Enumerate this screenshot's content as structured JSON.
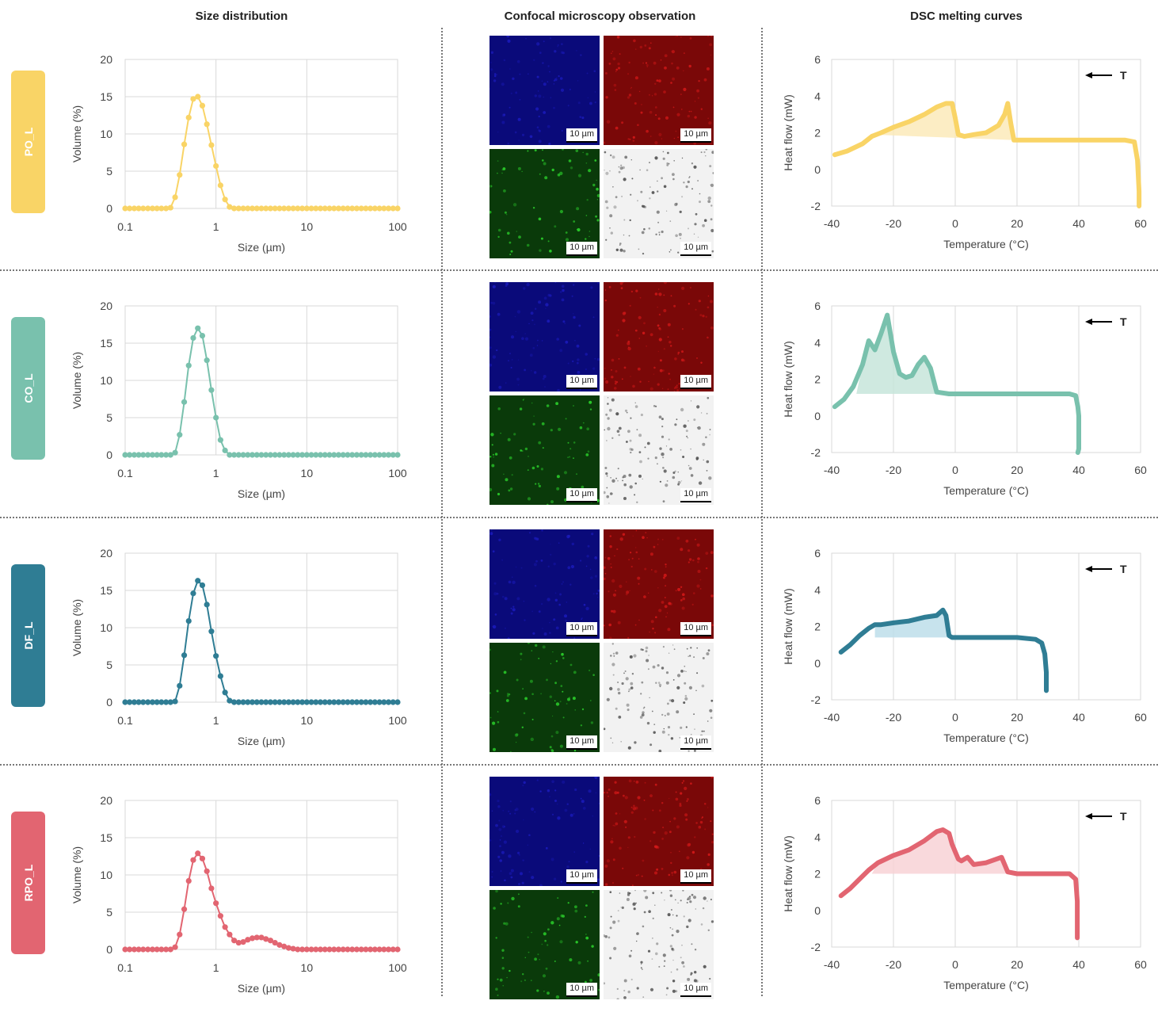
{
  "headers": {
    "size": "Size distribution",
    "confocal": "Confocal microscopy observation",
    "dsc": "DSC melting curves"
  },
  "scale_bar": "10 µm",
  "size_axis": {
    "xlabel": "Size (µm)",
    "ylabel": "Volume (%)",
    "xticks": [
      "0.1",
      "1",
      "10",
      "100"
    ],
    "yticks": [
      "0",
      "5",
      "10",
      "15",
      "20"
    ]
  },
  "dsc_axis": {
    "xlabel": "Temperature (°C)",
    "ylabel": "Heat flow (mW)",
    "xticks": [
      "-40",
      "-20",
      "0",
      "20",
      "40",
      "60"
    ],
    "yticks": [
      "-2",
      "0",
      "2",
      "4",
      "6"
    ],
    "arrow_label": "T"
  },
  "micro_colors": {
    "blue": "#0a0a7a",
    "red": "#7a0808",
    "green": "#0a3a0a",
    "gray": "#f2f2f2"
  },
  "samples": [
    {
      "name": "PO_L",
      "color": "#f9d466",
      "fill": "#fbe9b5"
    },
    {
      "name": "CO_L",
      "color": "#79c1ad",
      "fill": "#c3e3d8"
    },
    {
      "name": "DF_L",
      "color": "#2f7d94",
      "fill": "#b9dce8"
    },
    {
      "name": "RPO_L",
      "color": "#e26571",
      "fill": "#f7cfd3"
    }
  ],
  "chart_data": [
    {
      "type": "line",
      "sample": "PO_L",
      "xscale": "log",
      "xlim": [
        0.1,
        100
      ],
      "ylim": [
        0,
        20
      ],
      "xlabel": "Size (µm)",
      "ylabel": "Volume (%)",
      "series": [
        {
          "x": [
            0.1,
            0.112,
            0.126,
            0.141,
            0.158,
            0.178,
            0.2,
            0.224,
            0.251,
            0.282,
            0.316,
            0.355,
            0.398,
            0.447,
            0.501,
            0.562,
            0.631,
            0.708,
            0.794,
            0.891,
            1.0,
            1.122,
            1.259,
            1.413,
            1.585,
            1.778,
            1.995,
            2.239,
            2.512,
            2.818,
            3.162,
            3.548,
            3.981,
            4.467,
            5.012,
            5.623,
            6.31,
            7.079,
            7.943,
            8.913,
            10.0,
            11.22,
            12.59,
            14.13,
            15.85,
            17.78,
            19.95,
            22.39,
            25.12,
            28.18,
            31.62,
            35.48,
            39.81,
            44.67,
            50.12,
            56.23,
            63.1,
            70.79,
            79.43,
            89.13,
            100.0
          ],
          "y": [
            0,
            0,
            0,
            0,
            0,
            0,
            0,
            0,
            0,
            0,
            0.1,
            1.5,
            4.5,
            8.6,
            12.2,
            14.7,
            15.0,
            13.8,
            11.3,
            8.5,
            5.7,
            3.1,
            1.2,
            0.2,
            0,
            0,
            0,
            0,
            0,
            0,
            0,
            0,
            0,
            0,
            0,
            0,
            0,
            0,
            0,
            0,
            0,
            0,
            0,
            0,
            0,
            0,
            0,
            0,
            0,
            0,
            0,
            0,
            0,
            0,
            0,
            0,
            0,
            0,
            0,
            0,
            0
          ]
        }
      ]
    },
    {
      "type": "area",
      "sample": "PO_L",
      "xlim": [
        -40,
        60
      ],
      "ylim": [
        -2,
        6
      ],
      "xlabel": "Temperature (°C)",
      "ylabel": "Heat flow (mW)",
      "series": [
        {
          "x": [
            -39,
            -35,
            -30,
            -27,
            -24,
            -20,
            -15,
            -10,
            -6,
            -3,
            -1,
            0,
            1,
            3,
            6,
            10,
            14,
            16,
            17,
            18,
            19,
            25,
            35,
            45,
            55,
            58,
            59,
            59.5,
            59.5
          ],
          "y": [
            0.8,
            1.0,
            1.4,
            1.8,
            2.0,
            2.3,
            2.6,
            3.0,
            3.4,
            3.6,
            3.6,
            2.8,
            1.9,
            1.8,
            1.9,
            2.0,
            2.4,
            3.0,
            3.6,
            2.5,
            1.6,
            1.6,
            1.6,
            1.6,
            1.6,
            1.5,
            0.5,
            -1.2,
            -2.0
          ]
        }
      ],
      "baseline": {
        "x": [
          -27,
          19
        ],
        "y": [
          1.9,
          1.6
        ]
      }
    },
    {
      "type": "line",
      "sample": "CO_L",
      "xscale": "log",
      "xlim": [
        0.1,
        100
      ],
      "ylim": [
        0,
        20
      ],
      "xlabel": "Size (µm)",
      "ylabel": "Volume (%)",
      "series": [
        {
          "x": [
            0.1,
            0.112,
            0.126,
            0.141,
            0.158,
            0.178,
            0.2,
            0.224,
            0.251,
            0.282,
            0.316,
            0.355,
            0.398,
            0.447,
            0.501,
            0.562,
            0.631,
            0.708,
            0.794,
            0.891,
            1.0,
            1.122,
            1.259,
            1.413,
            1.585,
            1.778,
            1.995,
            2.239,
            2.512,
            2.818,
            3.162,
            3.548,
            3.981,
            4.467,
            5.012,
            5.623,
            6.31,
            7.079,
            7.943,
            8.913,
            10.0,
            11.22,
            12.59,
            14.13,
            15.85,
            17.78,
            19.95,
            22.39,
            25.12,
            28.18,
            31.62,
            35.48,
            39.81,
            44.67,
            50.12,
            56.23,
            63.1,
            70.79,
            79.43,
            89.13,
            100.0
          ],
          "y": [
            0,
            0,
            0,
            0,
            0,
            0,
            0,
            0,
            0,
            0,
            0,
            0.3,
            2.7,
            7.1,
            12.0,
            15.7,
            17.0,
            16.0,
            12.7,
            8.7,
            5.0,
            2.0,
            0.6,
            0,
            0,
            0,
            0,
            0,
            0,
            0,
            0,
            0,
            0,
            0,
            0,
            0,
            0,
            0,
            0,
            0,
            0,
            0,
            0,
            0,
            0,
            0,
            0,
            0,
            0,
            0,
            0,
            0,
            0,
            0,
            0,
            0,
            0,
            0,
            0,
            0,
            0
          ]
        }
      ]
    },
    {
      "type": "area",
      "sample": "CO_L",
      "xlim": [
        -40,
        60
      ],
      "ylim": [
        -2,
        6
      ],
      "xlabel": "Temperature (°C)",
      "ylabel": "Heat flow (mW)",
      "series": [
        {
          "x": [
            -39,
            -36,
            -33,
            -30,
            -28,
            -26,
            -24,
            -22,
            -20,
            -18,
            -16,
            -14,
            -12,
            -10,
            -8,
            -6,
            -2,
            10,
            20,
            30,
            37,
            39,
            39.7,
            40,
            40,
            40,
            39.7
          ],
          "y": [
            0.5,
            0.9,
            1.6,
            2.8,
            4.1,
            3.6,
            4.5,
            5.5,
            3.5,
            2.3,
            2.1,
            2.2,
            2.8,
            3.2,
            2.6,
            1.3,
            1.2,
            1.2,
            1.2,
            1.2,
            1.2,
            1.1,
            0.5,
            0.0,
            -1.0,
            -1.8,
            -2.0
          ]
        }
      ],
      "baseline": {
        "x": [
          -32,
          -6
        ],
        "y": [
          1.2,
          1.2
        ]
      }
    },
    {
      "type": "line",
      "sample": "DF_L",
      "xscale": "log",
      "xlim": [
        0.1,
        100
      ],
      "ylim": [
        0,
        20
      ],
      "xlabel": "Size (µm)",
      "ylabel": "Volume (%)",
      "series": [
        {
          "x": [
            0.1,
            0.112,
            0.126,
            0.141,
            0.158,
            0.178,
            0.2,
            0.224,
            0.251,
            0.282,
            0.316,
            0.355,
            0.398,
            0.447,
            0.501,
            0.562,
            0.631,
            0.708,
            0.794,
            0.891,
            1.0,
            1.122,
            1.259,
            1.413,
            1.585,
            1.778,
            1.995,
            2.239,
            2.512,
            2.818,
            3.162,
            3.548,
            3.981,
            4.467,
            5.012,
            5.623,
            6.31,
            7.079,
            7.943,
            8.913,
            10.0,
            11.22,
            12.59,
            14.13,
            15.85,
            17.78,
            19.95,
            22.39,
            25.12,
            28.18,
            31.62,
            35.48,
            39.81,
            44.67,
            50.12,
            56.23,
            63.1,
            70.79,
            79.43,
            89.13,
            100.0
          ],
          "y": [
            0,
            0,
            0,
            0,
            0,
            0,
            0,
            0,
            0,
            0,
            0,
            0.1,
            2.2,
            6.3,
            10.9,
            14.6,
            16.3,
            15.7,
            13.1,
            9.5,
            6.2,
            3.5,
            1.3,
            0.2,
            0,
            0,
            0,
            0,
            0,
            0,
            0,
            0,
            0,
            0,
            0,
            0,
            0,
            0,
            0,
            0,
            0,
            0,
            0,
            0,
            0,
            0,
            0,
            0,
            0,
            0,
            0,
            0,
            0,
            0,
            0,
            0,
            0,
            0,
            0,
            0,
            0
          ]
        }
      ]
    },
    {
      "type": "area",
      "sample": "DF_L",
      "xlim": [
        -40,
        60
      ],
      "ylim": [
        -2,
        6
      ],
      "xlabel": "Temperature (°C)",
      "ylabel": "Heat flow (mW)",
      "series": [
        {
          "x": [
            -37,
            -34,
            -31,
            -28,
            -26,
            -24,
            -20,
            -15,
            -10,
            -6,
            -4,
            -3,
            -2,
            -1,
            0,
            5,
            10,
            20,
            26,
            28,
            29,
            29.5,
            29.5,
            29.5
          ],
          "y": [
            0.6,
            1.0,
            1.5,
            1.9,
            2.1,
            2.1,
            2.2,
            2.3,
            2.5,
            2.6,
            2.9,
            2.6,
            1.5,
            1.4,
            1.4,
            1.4,
            1.4,
            1.4,
            1.3,
            1.1,
            0.5,
            -0.5,
            -1.2,
            -1.5
          ]
        }
      ],
      "baseline": {
        "x": [
          -26,
          -1
        ],
        "y": [
          1.4,
          1.4
        ]
      }
    },
    {
      "type": "line",
      "sample": "RPO_L",
      "xscale": "log",
      "xlim": [
        0.1,
        100
      ],
      "ylim": [
        0,
        20
      ],
      "xlabel": "Size (µm)",
      "ylabel": "Volume (%)",
      "series": [
        {
          "x": [
            0.1,
            0.112,
            0.126,
            0.141,
            0.158,
            0.178,
            0.2,
            0.224,
            0.251,
            0.282,
            0.316,
            0.355,
            0.398,
            0.447,
            0.501,
            0.562,
            0.631,
            0.708,
            0.794,
            0.891,
            1.0,
            1.122,
            1.259,
            1.413,
            1.585,
            1.778,
            1.995,
            2.239,
            2.512,
            2.818,
            3.162,
            3.548,
            3.981,
            4.467,
            5.012,
            5.623,
            6.31,
            7.079,
            7.943,
            8.913,
            10.0,
            11.22,
            12.59,
            14.13,
            15.85,
            17.78,
            19.95,
            22.39,
            25.12,
            28.18,
            31.62,
            35.48,
            39.81,
            44.67,
            50.12,
            56.23,
            63.1,
            70.79,
            79.43,
            89.13,
            100.0
          ],
          "y": [
            0,
            0,
            0,
            0,
            0,
            0,
            0,
            0,
            0,
            0,
            0,
            0.3,
            2.0,
            5.4,
            9.2,
            12.0,
            12.9,
            12.2,
            10.5,
            8.2,
            6.2,
            4.5,
            3.0,
            2.0,
            1.2,
            0.9,
            1.0,
            1.3,
            1.5,
            1.6,
            1.6,
            1.4,
            1.2,
            0.9,
            0.6,
            0.4,
            0.2,
            0.1,
            0,
            0,
            0,
            0,
            0,
            0,
            0,
            0,
            0,
            0,
            0,
            0,
            0,
            0,
            0,
            0,
            0,
            0,
            0,
            0,
            0,
            0,
            0
          ]
        }
      ]
    },
    {
      "type": "area",
      "sample": "RPO_L",
      "xlim": [
        -40,
        60
      ],
      "ylim": [
        -2,
        6
      ],
      "xlabel": "Temperature (°C)",
      "ylabel": "Heat flow (mW)",
      "series": [
        {
          "x": [
            -37,
            -34,
            -31,
            -28,
            -25,
            -20,
            -15,
            -10,
            -6,
            -4,
            -2,
            -1,
            0,
            1,
            2,
            4,
            6,
            10,
            15,
            16,
            17,
            20,
            30,
            37,
            39,
            39.5,
            39.5,
            39.5
          ],
          "y": [
            0.8,
            1.2,
            1.7,
            2.2,
            2.6,
            3.0,
            3.3,
            3.8,
            4.3,
            4.4,
            4.2,
            3.6,
            3.2,
            2.8,
            2.7,
            2.9,
            2.5,
            2.6,
            2.9,
            2.5,
            2.1,
            2.0,
            2.0,
            2.0,
            1.7,
            0.5,
            -0.8,
            -1.5
          ]
        }
      ],
      "baseline": {
        "x": [
          -27,
          17
        ],
        "y": [
          2.0,
          2.0
        ]
      }
    }
  ]
}
